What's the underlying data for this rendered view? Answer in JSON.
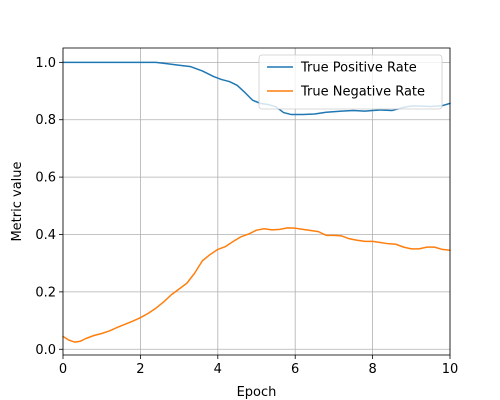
{
  "chart_data": {
    "type": "line",
    "title": "",
    "xlabel": "Epoch",
    "ylabel": "Metric value",
    "xlim": [
      0,
      10
    ],
    "ylim": [
      -0.02,
      1.05
    ],
    "xticks": [
      0,
      2,
      4,
      6,
      8,
      10
    ],
    "xtick_labels": [
      "0",
      "2",
      "4",
      "6",
      "8",
      "10"
    ],
    "yticks": [
      0.0,
      0.2,
      0.4,
      0.6,
      0.8,
      1.0
    ],
    "ytick_labels": [
      "0.0",
      "0.2",
      "0.4",
      "0.6",
      "0.8",
      "1.0"
    ],
    "grid": true,
    "legend_position": "upper-right",
    "series": [
      {
        "name": "True Positive Rate",
        "color": "#1f77b4",
        "x": [
          0,
          0.5,
          1,
          1.5,
          2,
          2.4,
          2.7,
          3.0,
          3.3,
          3.6,
          3.9,
          4.1,
          4.3,
          4.5,
          4.7,
          4.9,
          5.1,
          5.3,
          5.5,
          5.7,
          5.9,
          6.2,
          6.5,
          6.8,
          7.2,
          7.5,
          7.8,
          8.0,
          8.2,
          8.5,
          8.8,
          9.0,
          9.2,
          9.5,
          9.8,
          10
        ],
        "y": [
          1.0,
          1.0,
          1.0,
          1.0,
          1.0,
          1.0,
          0.995,
          0.99,
          0.985,
          0.97,
          0.95,
          0.94,
          0.933,
          0.92,
          0.895,
          0.868,
          0.857,
          0.853,
          0.845,
          0.825,
          0.818,
          0.818,
          0.82,
          0.826,
          0.83,
          0.832,
          0.83,
          0.832,
          0.834,
          0.832,
          0.843,
          0.848,
          0.848,
          0.846,
          0.849,
          0.857
        ]
      },
      {
        "name": "True Negative Rate",
        "color": "#ff7f0e",
        "x": [
          0,
          0.15,
          0.3,
          0.45,
          0.6,
          0.8,
          1.0,
          1.2,
          1.4,
          1.6,
          1.8,
          2.0,
          2.2,
          2.4,
          2.6,
          2.8,
          3.0,
          3.2,
          3.4,
          3.6,
          3.8,
          4.0,
          4.2,
          4.4,
          4.6,
          4.8,
          5.0,
          5.2,
          5.4,
          5.6,
          5.8,
          6.0,
          6.2,
          6.4,
          6.6,
          6.8,
          7.0,
          7.2,
          7.4,
          7.6,
          7.8,
          8.0,
          8.2,
          8.4,
          8.6,
          8.8,
          9.0,
          9.2,
          9.4,
          9.6,
          9.8,
          10
        ],
        "y": [
          0.045,
          0.032,
          0.025,
          0.028,
          0.038,
          0.048,
          0.055,
          0.064,
          0.076,
          0.087,
          0.098,
          0.11,
          0.125,
          0.143,
          0.165,
          0.19,
          0.21,
          0.23,
          0.265,
          0.308,
          0.33,
          0.348,
          0.358,
          0.376,
          0.392,
          0.402,
          0.415,
          0.42,
          0.416,
          0.418,
          0.423,
          0.422,
          0.418,
          0.414,
          0.41,
          0.397,
          0.397,
          0.395,
          0.385,
          0.38,
          0.376,
          0.376,
          0.372,
          0.368,
          0.366,
          0.356,
          0.35,
          0.35,
          0.356,
          0.356,
          0.348,
          0.345
        ]
      }
    ]
  }
}
